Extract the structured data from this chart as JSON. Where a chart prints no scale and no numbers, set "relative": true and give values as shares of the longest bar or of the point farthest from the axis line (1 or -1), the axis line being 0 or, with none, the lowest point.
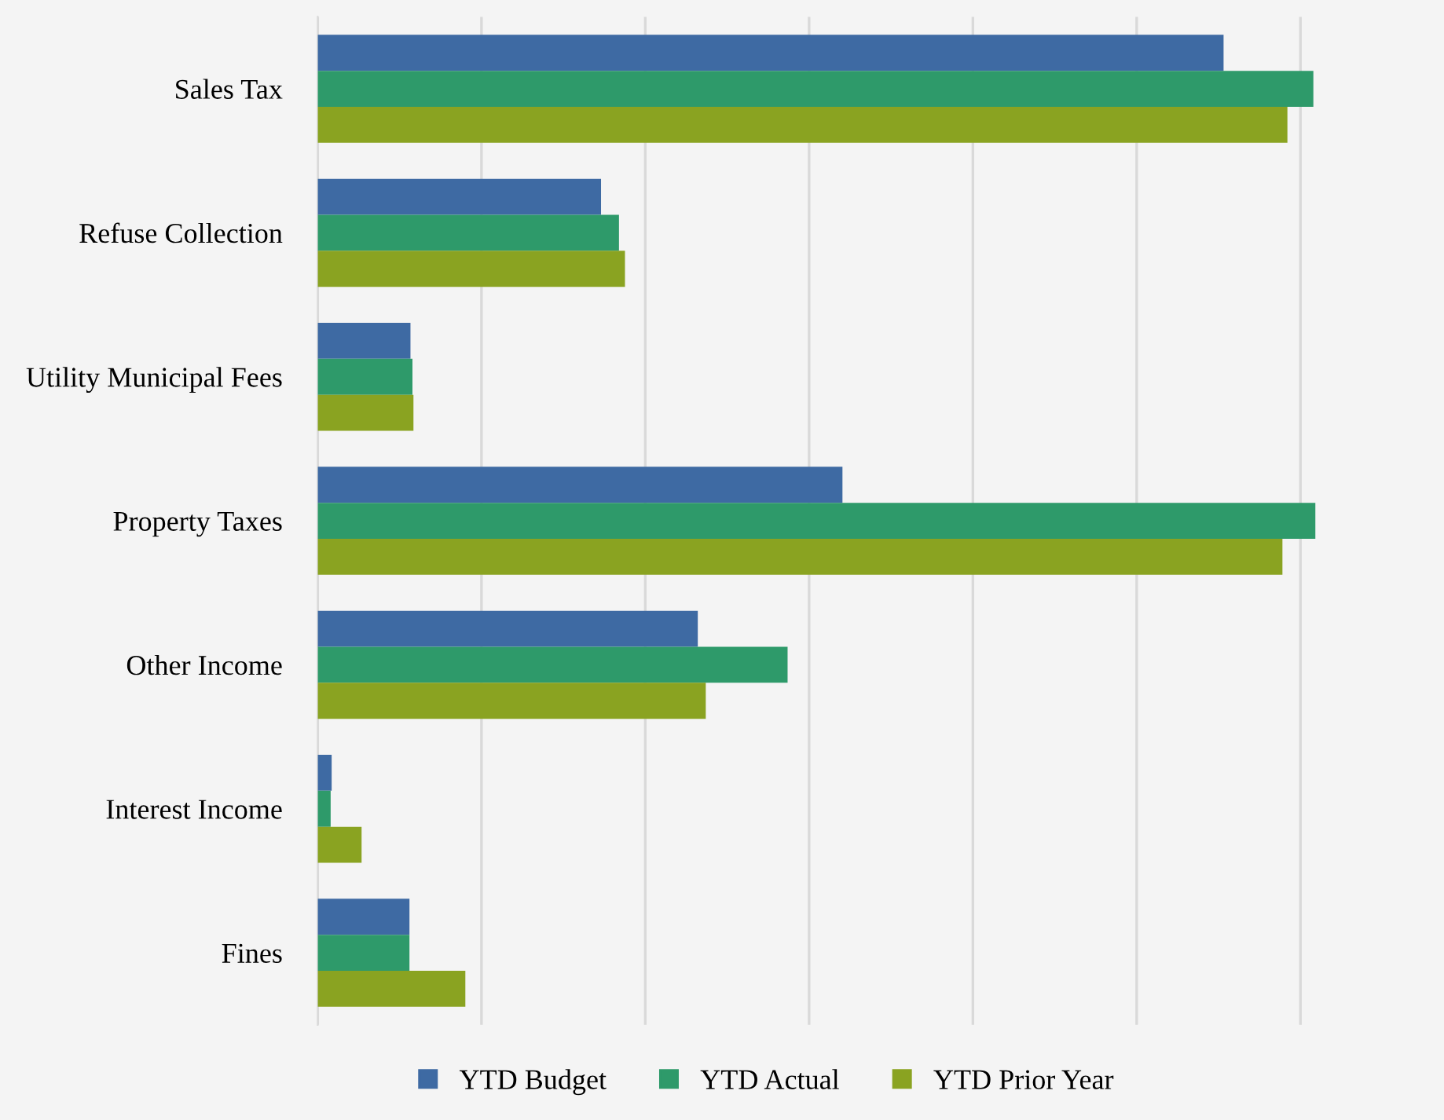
{
  "chart_data": {
    "type": "bar",
    "orientation": "horizontal",
    "relative": true,
    "grid": "x",
    "legend": "bottom",
    "marker": "square",
    "categories": [
      "Sales Tax",
      "Refuse Collection",
      "Utility Municipal Fees",
      "Property Taxes",
      "Other Income",
      "Interest Income",
      "Fines"
    ],
    "series": [
      {
        "name": "YTD Budget",
        "color": "#3e6aa3",
        "values": [
          0.908,
          0.284,
          0.093,
          0.526,
          0.381,
          0.014,
          0.092
        ]
      },
      {
        "name": "YTD Actual",
        "color": "#2e9a6a",
        "values": [
          0.998,
          0.302,
          0.095,
          1.0,
          0.471,
          0.013,
          0.092
        ]
      },
      {
        "name": "YTD Prior Year",
        "color": "#8aa321",
        "values": [
          0.972,
          0.308,
          0.096,
          0.967,
          0.389,
          0.044,
          0.148
        ]
      }
    ]
  }
}
